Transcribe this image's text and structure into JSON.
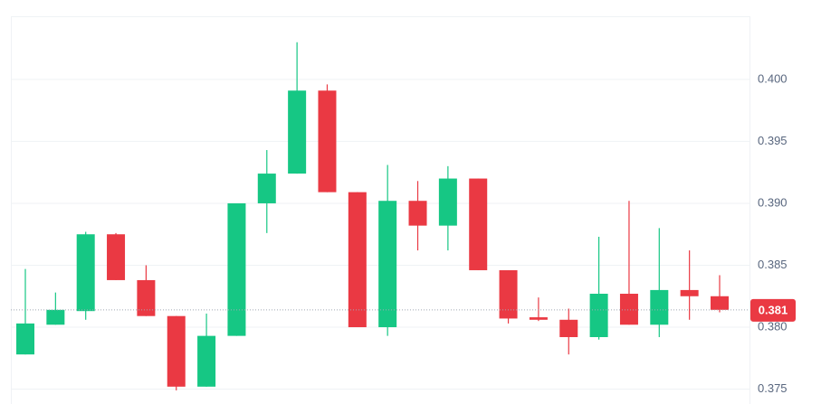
{
  "chart_data": {
    "type": "candlestick",
    "open": [
      0.3778,
      0.3802,
      0.3813,
      0.3875,
      0.3838,
      0.3809,
      0.3752,
      0.3793,
      0.39,
      0.3924,
      0.3991,
      0.3909,
      0.38,
      0.3902,
      0.3882,
      0.392,
      0.3846,
      0.3808,
      0.3806,
      0.3792,
      0.3827,
      0.3802,
      0.383,
      0.3825
    ],
    "high": [
      0.3847,
      0.3828,
      0.3877,
      0.3876,
      0.385,
      0.3809,
      0.3811,
      0.39,
      0.3943,
      0.403,
      0.3996,
      0.3909,
      0.3931,
      0.3918,
      0.393,
      0.392,
      0.3846,
      0.3824,
      0.3815,
      0.3873,
      0.3902,
      0.388,
      0.3862,
      0.3842
    ],
    "low": [
      0.3778,
      0.3802,
      0.3806,
      0.3838,
      0.3809,
      0.3749,
      0.3752,
      0.3793,
      0.3876,
      0.3924,
      0.3909,
      0.38,
      0.3793,
      0.3862,
      0.3862,
      0.3846,
      0.3803,
      0.3805,
      0.3778,
      0.379,
      0.3802,
      0.3792,
      0.3806,
      0.3812
    ],
    "close": [
      0.3803,
      0.3814,
      0.3875,
      0.3838,
      0.3809,
      0.3752,
      0.3793,
      0.39,
      0.3924,
      0.3991,
      0.3909,
      0.38,
      0.3902,
      0.3882,
      0.392,
      0.3846,
      0.3807,
      0.3806,
      0.3792,
      0.3827,
      0.3802,
      0.383,
      0.3825,
      0.3814
    ],
    "up_color": "#16c784",
    "down_color": "#ea3943",
    "ylim": [
      0.3738,
      0.4051
    ],
    "yticks": [
      {
        "value": 0.375,
        "label": "0.375"
      },
      {
        "value": 0.38,
        "label": "0.380"
      },
      {
        "value": 0.385,
        "label": "0.385"
      },
      {
        "value": 0.39,
        "label": "0.390"
      },
      {
        "value": 0.395,
        "label": "0.395"
      },
      {
        "value": 0.4,
        "label": "0.400"
      }
    ],
    "grid": true,
    "last_price": {
      "value": 0.3814,
      "label": "0.381"
    }
  }
}
